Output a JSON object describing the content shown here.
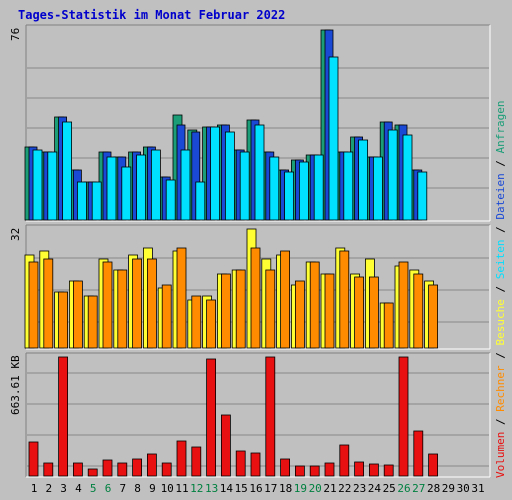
{
  "colors": {
    "background": "#c0c0c0",
    "grid": "#888888",
    "frame_light": "#ffffff",
    "frame_dark": "#808080",
    "title": "#0000cc",
    "weekend_label": "#008040",
    "anfragen": "#1b9e77",
    "dateien": "#1a49d6",
    "seiten": "#00e0ff",
    "besuche": "#ffff33",
    "rechner": "#ff8c00",
    "volumen": "#e81010",
    "legend_sep": "#000000"
  },
  "chart_data": {
    "type": "bar",
    "title": "Tages-Statistik im Monat Februar 2022",
    "categories": [
      "1",
      "2",
      "3",
      "4",
      "5",
      "6",
      "7",
      "8",
      "9",
      "10",
      "11",
      "12",
      "13",
      "14",
      "15",
      "16",
      "17",
      "18",
      "19",
      "20",
      "21",
      "22",
      "23",
      "24",
      "25",
      "26",
      "27",
      "28",
      "29",
      "30",
      "31"
    ],
    "weekend_days": [
      5,
      6,
      12,
      13,
      19,
      20,
      26,
      27
    ],
    "panels": [
      {
        "id": "requests",
        "ymax_label": "76",
        "ylim": [
          0,
          76
        ],
        "series": [
          {
            "name": "Anfragen",
            "color_key": "anfragen",
            "values": [
              29,
              27,
              41,
              20,
              15,
              27,
              25,
              27,
              29,
              17,
              42,
              36,
              37,
              38,
              28,
              40,
              27,
              20,
              24,
              26,
              76,
              27,
              33,
              25,
              39,
              38,
              20,
              null,
              null,
              null,
              null
            ]
          },
          {
            "name": "Dateien",
            "color_key": "dateien",
            "values": [
              29,
              27,
              41,
              20,
              15,
              27,
              25,
              27,
              29,
              17,
              38,
              35,
              37,
              38,
              28,
              40,
              27,
              20,
              24,
              26,
              76,
              27,
              33,
              25,
              39,
              38,
              20,
              null,
              null,
              null,
              null
            ]
          },
          {
            "name": "Seiten",
            "color_key": "seiten",
            "values": [
              28,
              27,
              39,
              15,
              15,
              25,
              21,
              26,
              28,
              16,
              28,
              15,
              37,
              35,
              27,
              38,
              25,
              19,
              23,
              26,
              65,
              27,
              32,
              25,
              36,
              34,
              19,
              null,
              null,
              null,
              null
            ]
          }
        ]
      },
      {
        "id": "visits",
        "ymax_label": "32",
        "ylim": [
          0,
          32
        ],
        "series": [
          {
            "name": "Besuche",
            "color_key": "besuche",
            "values": [
              25,
              26,
              15,
              18,
              14,
              24,
              21,
              25,
              27,
              16,
              26,
              13,
              14,
              20,
              21,
              32,
              24,
              25,
              17,
              23,
              20,
              27,
              20,
              24,
              12,
              22,
              21,
              18,
              null,
              null,
              null
            ]
          },
          {
            "name": "Rechner",
            "color_key": "rechner",
            "values": [
              23,
              24,
              15,
              18,
              14,
              23,
              21,
              24,
              24,
              17,
              27,
              14,
              13,
              20,
              21,
              27,
              21,
              26,
              18,
              23,
              20,
              26,
              19,
              19,
              12,
              23,
              20,
              17,
              null,
              null,
              null
            ]
          }
        ]
      },
      {
        "id": "volume",
        "ymax_label": "663.61 KB",
        "ylim": [
          0,
          663.61
        ],
        "series": [
          {
            "name": "Volumen",
            "color_key": "volumen",
            "values": [
              190,
              70,
              665,
              70,
              40,
              90,
              75,
              95,
              125,
              75,
              195,
              160,
              650,
              340,
              140,
              130,
              665,
              95,
              55,
              55,
              75,
              175,
              80,
              65,
              60,
              665,
              250,
              120,
              null,
              null,
              null
            ]
          }
        ]
      }
    ],
    "legend": {
      "placement": "right, vertical",
      "order": [
        "Volumen",
        "Rechner",
        "Besuche",
        "Seiten",
        "Dateien",
        "Anfragen"
      ],
      "separator": " / "
    }
  }
}
